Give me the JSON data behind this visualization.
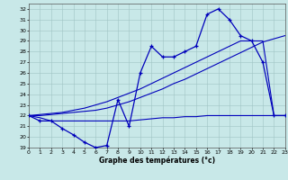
{
  "xlabel": "Graphe des températures (°c)",
  "background_color": "#c8e8e8",
  "line_color": "#0000bb",
  "hours": [
    0,
    1,
    2,
    3,
    4,
    5,
    6,
    7,
    8,
    9,
    10,
    11,
    12,
    13,
    14,
    15,
    16,
    17,
    18,
    19,
    20,
    21,
    22,
    23
  ],
  "temp_actual": [
    22.0,
    21.5,
    21.5,
    20.8,
    20.2,
    19.5,
    19.0,
    19.2,
    23.5,
    21.0,
    26.0,
    28.5,
    27.5,
    27.5,
    28.0,
    28.5,
    31.5,
    32.0,
    31.0,
    29.5,
    29.0,
    27.0,
    22.0,
    22.0
  ],
  "temp_flat": [
    22.0,
    21.8,
    21.5,
    21.5,
    21.5,
    21.5,
    21.5,
    21.5,
    21.5,
    21.5,
    21.6,
    21.7,
    21.8,
    21.8,
    21.9,
    21.9,
    22.0,
    22.0,
    22.0,
    22.0,
    22.0,
    22.0,
    22.0,
    22.0
  ],
  "temp_trend1": [
    22.0,
    22.0,
    22.1,
    22.2,
    22.3,
    22.4,
    22.5,
    22.7,
    23.0,
    23.3,
    23.7,
    24.1,
    24.5,
    25.0,
    25.4,
    25.9,
    26.4,
    26.9,
    27.4,
    27.9,
    28.4,
    28.9,
    29.2,
    29.5
  ],
  "temp_trend2": [
    22.0,
    22.1,
    22.2,
    22.3,
    22.5,
    22.7,
    23.0,
    23.3,
    23.7,
    24.1,
    24.5,
    25.0,
    25.5,
    26.0,
    26.5,
    27.0,
    27.5,
    28.0,
    28.5,
    29.0,
    29.0,
    29.0,
    22.0,
    22.0
  ],
  "ylim": [
    19,
    32.5
  ],
  "xlim": [
    0,
    23
  ],
  "yticks": [
    19,
    20,
    21,
    22,
    23,
    24,
    25,
    26,
    27,
    28,
    29,
    30,
    31,
    32
  ],
  "xticks": [
    0,
    1,
    2,
    3,
    4,
    5,
    6,
    7,
    8,
    9,
    10,
    11,
    12,
    13,
    14,
    15,
    16,
    17,
    18,
    19,
    20,
    21,
    22,
    23
  ]
}
